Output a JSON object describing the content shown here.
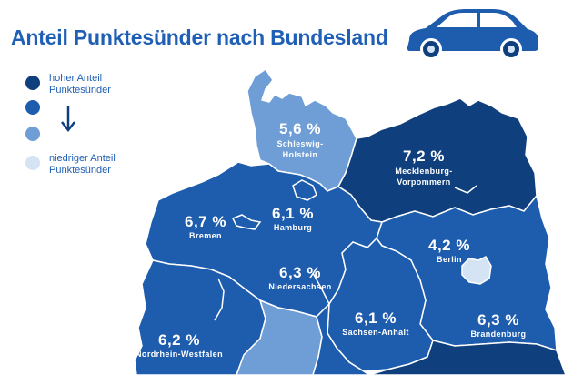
{
  "title": "Anteil Punktesünder nach Bundesland",
  "legend": {
    "high_label": "hoher Anteil Punktesünder",
    "low_label": "niedriger Anteil Punktesünder",
    "colors": [
      "#103f7e",
      "#1e5cae",
      "#6f9ed6",
      "#d5e4f4"
    ]
  },
  "regions": [
    {
      "name": "Schleswig-Holstein",
      "value": "5,6 %",
      "color": "#6f9ed6"
    },
    {
      "name": "Mecklenburg-Vorpommern",
      "value": "7,2 %",
      "color": "#103f7e"
    },
    {
      "name": "Bremen",
      "value": "6,7 %",
      "color": "#1e5cae"
    },
    {
      "name": "Hamburg",
      "value": "6,1 %",
      "color": "#1e5cae"
    },
    {
      "name": "Berlin",
      "value": "4,2 %",
      "color": "#d5e4f4"
    },
    {
      "name": "Niedersachsen",
      "value": "6,3 %",
      "color": "#1e5cae"
    },
    {
      "name": "Sachsen-Anhalt",
      "value": "6,1 %",
      "color": "#1e5cae"
    },
    {
      "name": "Brandenburg",
      "value": "6,3 %",
      "color": "#1e5cae"
    },
    {
      "name": "Nordrhein-Westfalen",
      "value": "6,2 %",
      "color": "#1e5cae"
    }
  ],
  "icons": {
    "car": "car-icon",
    "arrow": "arrow-down-icon"
  }
}
